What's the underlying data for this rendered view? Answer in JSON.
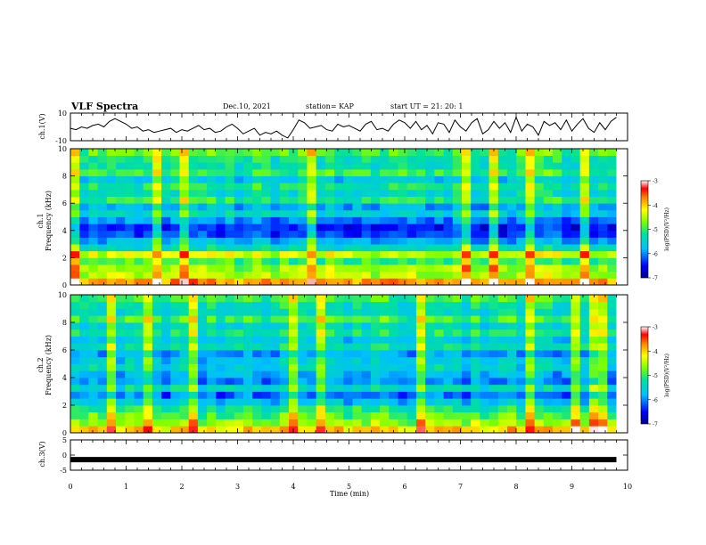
{
  "header": {
    "title": "VLF Spectra",
    "date": "Dec.10, 2021",
    "station": "station= KAP",
    "start": "start  UT  =   21: 20: 1"
  },
  "chart_data": [
    {
      "type": "line",
      "panel": "ch1-waveform",
      "ylabel": "ch.1(V)",
      "ylim": [
        -10,
        10
      ],
      "y_ticks": [
        "10",
        "-10"
      ],
      "xlim": [
        0,
        10
      ],
      "color": "#000000",
      "series": [
        {
          "x": [
            0,
            0.1,
            0.2,
            0.3,
            0.4,
            0.5,
            0.6,
            0.7,
            0.8,
            0.9,
            1.0,
            1.1,
            1.2,
            1.3,
            1.4,
            1.5,
            1.6,
            1.7,
            1.8,
            1.9,
            2.0,
            2.1,
            2.2,
            2.3,
            2.4,
            2.5,
            2.6,
            2.7,
            2.8,
            2.9,
            3.0,
            3.1,
            3.2,
            3.3,
            3.4,
            3.5,
            3.6,
            3.7,
            3.8,
            3.9,
            4.0,
            4.1,
            4.2,
            4.3,
            4.4,
            4.5,
            4.6,
            4.7,
            4.8,
            4.9,
            5.0,
            5.1,
            5.2,
            5.3,
            5.4,
            5.5,
            5.6,
            5.7,
            5.8,
            5.9,
            6.0,
            6.1,
            6.2,
            6.3,
            6.4,
            6.5,
            6.6,
            6.7,
            6.8,
            6.9,
            7.0,
            7.1,
            7.2,
            7.3,
            7.4,
            7.5,
            7.6,
            7.7,
            7.8,
            7.9,
            8.0,
            8.1,
            8.2,
            8.3,
            8.4,
            8.5,
            8.6,
            8.7,
            8.8,
            8.9,
            9.0,
            9.1,
            9.2,
            9.3,
            9.4,
            9.5,
            9.6,
            9.7,
            9.8
          ],
          "y": [
            -1,
            -2,
            0,
            -1,
            1,
            2,
            0,
            4,
            6,
            4,
            2,
            -1,
            0,
            -3,
            -2,
            -4,
            -3,
            -2,
            -1,
            -4,
            -2,
            -3,
            -1,
            1,
            -2,
            -1,
            -4,
            -3,
            0,
            2,
            -1,
            -5,
            -3,
            -1,
            -6,
            -4,
            -5,
            -3,
            -6,
            -8,
            -2,
            5,
            3,
            -1,
            0,
            1,
            -2,
            -3,
            2,
            0,
            1,
            -1,
            -3,
            2,
            4,
            -2,
            -1,
            -3,
            2,
            5,
            3,
            -1,
            4,
            -2,
            1,
            -5,
            3,
            2,
            -4,
            5,
            0,
            -3,
            3,
            6,
            -5,
            -2,
            4,
            -1,
            3,
            -4,
            7,
            -3,
            2,
            0,
            -6,
            4,
            1,
            3,
            -2,
            5,
            -3,
            2,
            6,
            -1,
            -4,
            3,
            -2,
            4,
            7
          ]
        }
      ]
    },
    {
      "type": "heatmap",
      "panel": "ch1-spectrogram",
      "ylabel": "ch.1\nFrequency (kHz)",
      "ylim": [
        0,
        10
      ],
      "y_ticks": [
        "0",
        "2",
        "4",
        "6",
        "8",
        "10"
      ],
      "xlim": [
        0,
        10
      ],
      "colorbar": {
        "label": "log(PSD)(V²/Hz)",
        "range": [
          -7,
          -3
        ],
        "ticks": [
          "-3",
          "-4",
          "-5",
          "-6",
          "-7"
        ]
      },
      "frequency_rows_kHz": [
        0.25,
        0.75,
        1.25,
        1.75,
        2.25,
        2.75,
        3.25,
        3.75,
        4.25,
        4.75,
        5.25,
        5.75,
        6.25,
        6.75,
        7.25,
        7.75,
        8.25,
        8.75,
        9.25,
        9.75
      ],
      "mean_log_psd_by_row": [
        -3.8,
        -4.5,
        -4.6,
        -5.0,
        -4.4,
        -5.4,
        -5.8,
        -6.3,
        -6.4,
        -6.0,
        -5.5,
        -5.8,
        -5.1,
        -5.4,
        -5.2,
        -5.6,
        -5.0,
        -5.3,
        -5.2,
        -4.9
      ]
    },
    {
      "type": "heatmap",
      "panel": "ch2-spectrogram",
      "ylabel": "ch.2\nFrequency (kHz)",
      "ylim": [
        0,
        10
      ],
      "y_ticks": [
        "0",
        "2",
        "4",
        "6",
        "8",
        "10"
      ],
      "xlim": [
        0,
        10
      ],
      "colorbar": {
        "label": "log(PSD)(V²/Hz)",
        "range": [
          -7,
          -3
        ],
        "ticks": [
          "-3",
          "-4",
          "-5",
          "-6",
          "-7"
        ]
      },
      "frequency_rows_kHz": [
        0.25,
        0.75,
        1.25,
        1.75,
        2.25,
        2.75,
        3.25,
        3.75,
        4.25,
        4.75,
        5.25,
        5.75,
        6.25,
        6.75,
        7.25,
        7.75,
        8.25,
        8.75,
        9.25,
        9.75
      ],
      "mean_log_psd_by_row": [
        -4.0,
        -4.6,
        -4.9,
        -5.2,
        -5.7,
        -6.1,
        -5.4,
        -6.0,
        -5.8,
        -5.5,
        -5.6,
        -5.9,
        -5.3,
        -5.6,
        -5.2,
        -5.5,
        -5.0,
        -5.4,
        -5.3,
        -5.0
      ]
    },
    {
      "type": "line",
      "panel": "ch3-waveform",
      "ylabel": "ch.3(V)",
      "ylim": [
        -5,
        5
      ],
      "y_ticks": [
        "5",
        "0",
        "-5"
      ],
      "xlim": [
        0,
        10
      ],
      "color": "#000000",
      "series": [
        {
          "x": [
            0,
            9.8
          ],
          "y": [
            -1.5,
            -1.5
          ]
        }
      ]
    }
  ],
  "x_axis": {
    "label": "Time (min)",
    "ticks": [
      "0",
      "1",
      "2",
      "3",
      "4",
      "5",
      "6",
      "7",
      "8",
      "9",
      "10"
    ]
  }
}
